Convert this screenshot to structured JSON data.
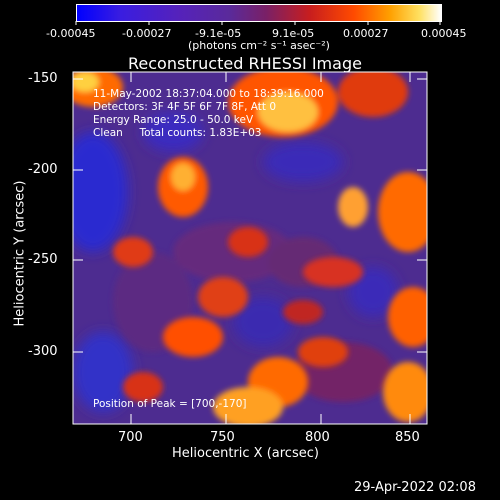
{
  "colorbar": {
    "tick_labels": [
      "-0.00045",
      "-0.00027",
      "-9.1e-05",
      "9.1e-05",
      "0.00027",
      "0.00045"
    ],
    "units": "(photons cm⁻² s⁻¹ asec⁻²)"
  },
  "plot": {
    "title": "Reconstructed RHESSI Image",
    "x_title": "Heliocentric X (arcsec)",
    "y_title": "Heliocentric Y (arcsec)",
    "x_ticks": [
      "700",
      "750",
      "800",
      "850"
    ],
    "y_ticks": [
      "-150",
      "-200",
      "-250",
      "-300"
    ]
  },
  "annotations": {
    "time_range": "11-May-2002 18:37:04.000 to 18:39:16.000",
    "detectors": "Detectors: 3F 4F 5F 6F 7F 8F, Att 0",
    "energy": "Energy Range: 25.0 - 50.0 keV",
    "method": "Clean     Total counts: 1.83E+03",
    "peak": "Position of Peak = [700,-170]"
  },
  "footer": {
    "timestamp": "29-Apr-2022 02:08"
  },
  "colors": {
    "background": "#000000",
    "foreground": "#ffffff"
  }
}
